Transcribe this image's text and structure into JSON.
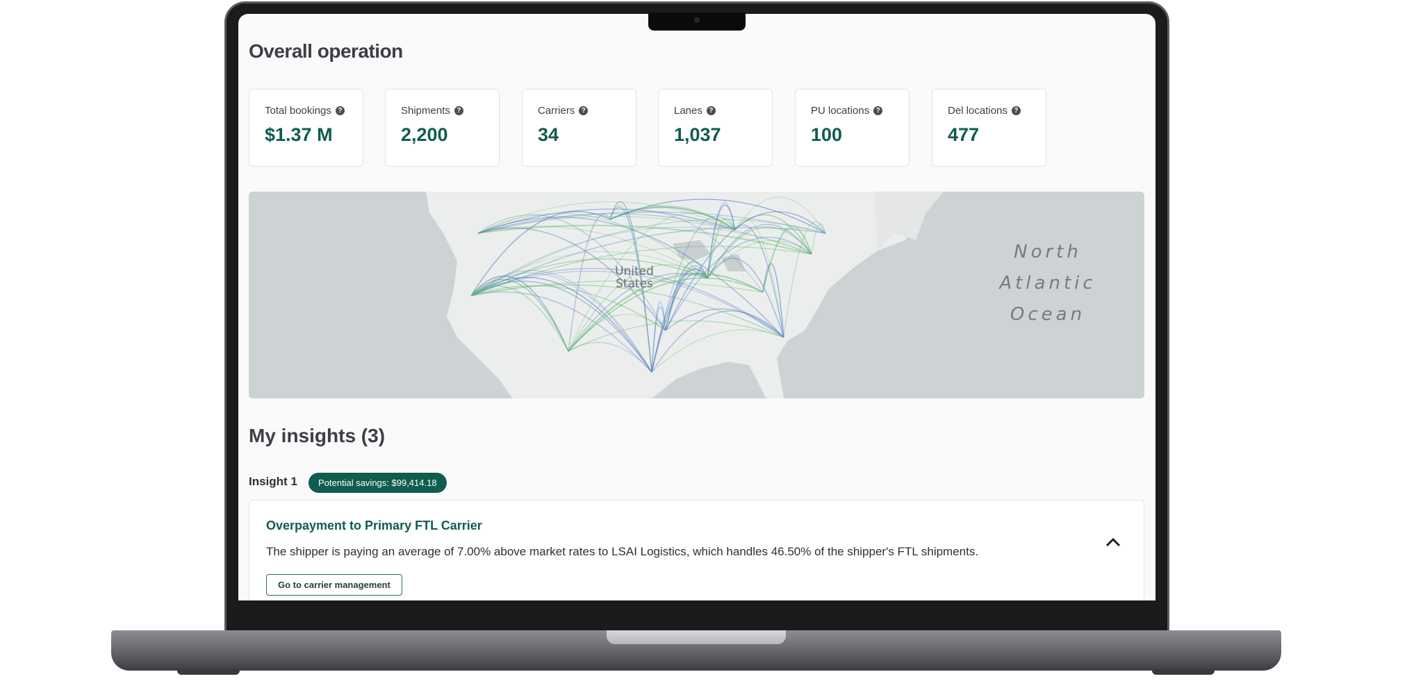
{
  "page": {
    "title": "Overall operation"
  },
  "metrics": [
    {
      "label": "Total bookings",
      "value": "$1.37 M"
    },
    {
      "label": "Shipments",
      "value": "2,200"
    },
    {
      "label": "Carriers",
      "value": "34"
    },
    {
      "label": "Lanes",
      "value": "1,037"
    },
    {
      "label": "PU locations",
      "value": "100"
    },
    {
      "label": "Del locations",
      "value": "477"
    }
  ],
  "help_icon": "?",
  "map": {
    "country_label_1": "United",
    "country_label_2": "States",
    "ocean_label_1": "North",
    "ocean_label_2": "Atlantic",
    "ocean_label_3": "Ocean",
    "colors": {
      "water": "#cdd3d4",
      "land": "#eceeed",
      "lane_green": "#5fbf6a",
      "lane_blue": "#5a7fc9"
    }
  },
  "insights": {
    "title": "My insights (3)",
    "items": [
      {
        "label": "Insight 1",
        "badge": "Potential savings: $99,414.18",
        "title": "Overpayment to Primary FTL Carrier",
        "description": "The shipper is paying an average of 7.00% above market rates to LSAI Logistics, which handles 46.50% of the shipper's FTL shipments.",
        "button": "Go to carrier management",
        "expanded": true
      }
    ]
  },
  "colors": {
    "accent": "#0f5c50",
    "text": "#3b3f45"
  }
}
